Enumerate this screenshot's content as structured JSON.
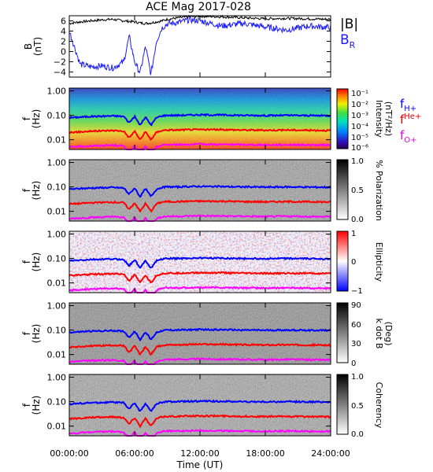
{
  "title": "ACE Mag 2017-028",
  "x_axis": {
    "label": "Time (UT)",
    "ticks": [
      "00:00:00",
      "06:00:00",
      "12:00:00",
      "18:00:00",
      "24:00:00"
    ],
    "range_hours": [
      0,
      24
    ]
  },
  "legends": {
    "field": [
      {
        "text": "|B|",
        "color": "#000000"
      },
      {
        "text": "B",
        "sub": "R",
        "color": "#1a1aff"
      }
    ],
    "gyrofreq": [
      {
        "text": "f",
        "sub": "H+",
        "color": "#0000ff"
      },
      {
        "text": "f",
        "sub": "He+",
        "color": "#ff0000"
      },
      {
        "text": "f",
        "sub": "O+",
        "color": "#ff00ff"
      }
    ]
  },
  "panels": [
    {
      "key": "mag",
      "ylabel": "B",
      "yunit": "(nT)",
      "ticks": [
        "6",
        "4",
        "2",
        "0",
        "−2",
        "−4"
      ]
    },
    {
      "key": "intensity",
      "ylabel": "f",
      "yunit": "(Hz)",
      "ticks": [
        "1.00",
        "0.10",
        "0.01"
      ],
      "cbar_title": "Intensity",
      "cbar_unit": "(nT²/Hz)",
      "cbar_ticks": [
        "10⁻¹",
        "10⁻²",
        "10⁻³",
        "10⁻⁴",
        "10⁻⁵",
        "10⁻⁶"
      ]
    },
    {
      "key": "polarization",
      "ylabel": "f",
      "yunit": "(Hz)",
      "ticks": [
        "1.00",
        "0.10",
        "0.01"
      ],
      "cbar_title": "% Polarization",
      "cbar_ticks": [
        "1.0",
        "0.5",
        "0.0"
      ]
    },
    {
      "key": "ellipticity",
      "ylabel": "f",
      "yunit": "(Hz)",
      "ticks": [
        "1.00",
        "0.10",
        "0.01"
      ],
      "cbar_title": "Ellipticity",
      "cbar_ticks": [
        "1",
        "0",
        "−1"
      ]
    },
    {
      "key": "kdotb",
      "ylabel": "f",
      "yunit": "(Hz)",
      "ticks": [
        "1.00",
        "0.10",
        "0.01"
      ],
      "cbar_title": "k dot B",
      "cbar_unit": "(Deg)",
      "cbar_ticks": [
        "90",
        "60",
        "30",
        "0"
      ]
    },
    {
      "key": "coherency",
      "ylabel": "f",
      "yunit": "(Hz)",
      "ticks": [
        "1.00",
        "0.10",
        "0.01"
      ],
      "cbar_title": "Coherency",
      "cbar_ticks": [
        "1.0",
        "0.5",
        "0.0"
      ]
    }
  ],
  "chart_data": {
    "type": "line",
    "title": "ACE Mag 2017-028",
    "xlabel": "Time (UT)",
    "x_hours": [
      0,
      1,
      2,
      3,
      4,
      5,
      5.5,
      6,
      6.5,
      7,
      7.5,
      8,
      8.5,
      9,
      10,
      11,
      12,
      14,
      16,
      18,
      20,
      22,
      24
    ],
    "series": [
      {
        "name": "|B|",
        "unit": "nT",
        "color": "#000000",
        "values": [
          5.5,
          5.8,
          6.0,
          6.2,
          6.3,
          6.0,
          5.9,
          5.8,
          5.6,
          5.5,
          5.6,
          5.8,
          6.0,
          6.3,
          6.6,
          6.8,
          6.9,
          6.8,
          6.6,
          6.4,
          6.5,
          6.4,
          6.3
        ]
      },
      {
        "name": "B_R",
        "unit": "nT",
        "color": "#1a1aff",
        "values": [
          4.0,
          -2.5,
          -3.0,
          -2.8,
          -3.2,
          -2.0,
          3.0,
          -2.0,
          -4.2,
          1.0,
          -4.5,
          2.0,
          4.6,
          5.4,
          5.7,
          6.2,
          6.0,
          5.0,
          5.5,
          4.8,
          4.2,
          5.0,
          4.7
        ]
      }
    ],
    "ylim": [
      -5,
      7
    ],
    "gyrofrequencies_hz": {
      "x_hours": [
        0,
        1,
        2,
        3,
        4,
        5,
        5.5,
        6,
        6.5,
        7,
        7.5,
        8,
        8.5,
        9,
        10,
        11,
        12,
        14,
        16,
        18,
        20,
        22,
        24
      ],
      "f_H+": [
        0.08,
        0.085,
        0.09,
        0.092,
        0.095,
        0.09,
        0.05,
        0.09,
        0.04,
        0.085,
        0.04,
        0.08,
        0.095,
        0.1,
        0.1,
        0.103,
        0.105,
        0.103,
        0.1,
        0.098,
        0.1,
        0.098,
        0.097
      ],
      "f_He+": [
        0.02,
        0.021,
        0.0225,
        0.023,
        0.024,
        0.0225,
        0.012,
        0.0225,
        0.01,
        0.021,
        0.01,
        0.02,
        0.024,
        0.025,
        0.025,
        0.026,
        0.026,
        0.026,
        0.025,
        0.0245,
        0.025,
        0.0245,
        0.024
      ],
      "f_O+": [
        0.005,
        0.0053,
        0.0056,
        0.0058,
        0.006,
        0.0056,
        0.003,
        0.0056,
        0.0025,
        0.0053,
        0.0025,
        0.005,
        0.006,
        0.0063,
        0.0063,
        0.0064,
        0.0066,
        0.0064,
        0.0063,
        0.0061,
        0.0063,
        0.0061,
        0.006
      ]
    },
    "frequency_axis_hz": [
      0.004,
      1.3
    ],
    "grid": false
  }
}
